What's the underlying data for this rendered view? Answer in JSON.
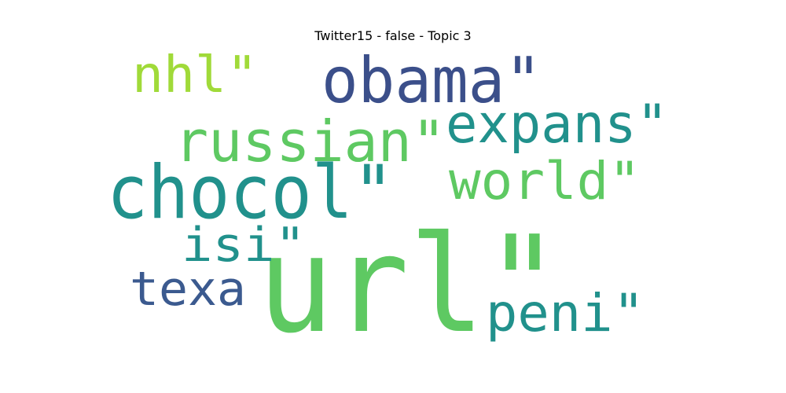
{
  "title": "Twitter15 - false - Topic 3",
  "words": [
    {
      "text": "url\"",
      "color": "#5ec962"
    },
    {
      "text": "chocol\"",
      "color": "#21918c"
    },
    {
      "text": "obama\"",
      "color": "#3b4f8a"
    },
    {
      "text": "russian\"",
      "color": "#5ec962"
    },
    {
      "text": "expans\"",
      "color": "#21918c"
    },
    {
      "text": "world\"",
      "color": "#5ec962"
    },
    {
      "text": "nhl\"",
      "color": "#a0da39"
    },
    {
      "text": "peni\"",
      "color": "#21918c"
    },
    {
      "text": "isi\"",
      "color": "#21918c"
    },
    {
      "text": "texa",
      "color": "#3b5a8f"
    }
  ]
}
